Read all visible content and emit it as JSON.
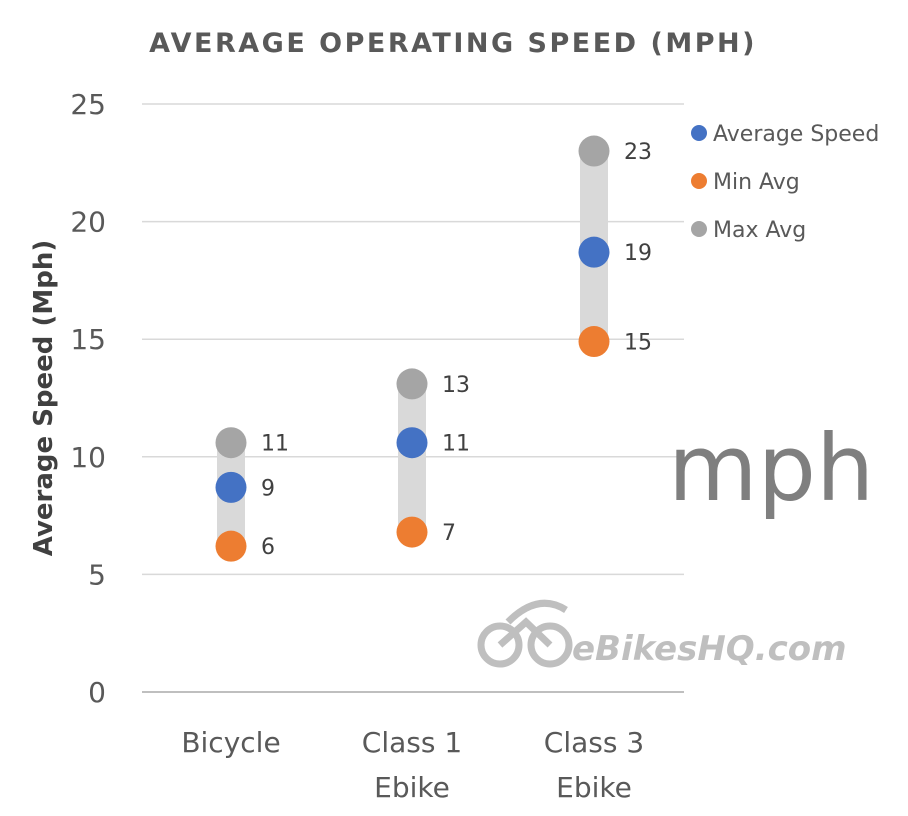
{
  "chart_data": {
    "type": "scatter",
    "title": "AVERAGE OPERATING SPEED (MPH)",
    "ylabel": "Average Speed (Mph)",
    "xlabel": "",
    "ylim": [
      0,
      25
    ],
    "yticks": [
      "0",
      "5",
      "10",
      "15",
      "20",
      "25"
    ],
    "categories": [
      [
        "Bicycle"
      ],
      [
        "Class 1",
        "Ebike"
      ],
      [
        "Class 3",
        "Ebike"
      ]
    ],
    "series": [
      {
        "name": "Average Speed",
        "values": [
          8.7,
          10.6,
          18.7
        ],
        "labels": [
          "9",
          "11",
          "19"
        ],
        "color": "#4472C4"
      },
      {
        "name": "Min Avg",
        "values": [
          6.2,
          6.8,
          14.9
        ],
        "labels": [
          "6",
          "7",
          "15"
        ],
        "color": "#ED7D31"
      },
      {
        "name": "Max Avg",
        "values": [
          10.6,
          13.1,
          23.0
        ],
        "labels": [
          "11",
          "13",
          "23"
        ],
        "color": "#A5A5A5"
      }
    ],
    "range_bar_color": "#D9D9D9",
    "grid": true,
    "legend_position": "top-right",
    "annotation": "mph"
  },
  "watermark": {
    "text": "eBikesHQ.com",
    "icon": "motorcycle-icon"
  },
  "colors": {
    "title": "#595959",
    "axis_text": "#595959",
    "ylabel": "#404040",
    "grid": "#D9D9D9",
    "unit": "#7F7F7F"
  }
}
